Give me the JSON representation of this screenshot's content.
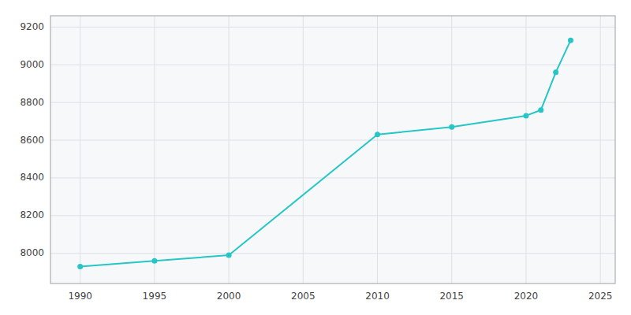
{
  "chart_data": {
    "type": "line",
    "x": [
      1990,
      1995,
      2000,
      2010,
      2015,
      2020,
      2021,
      2022,
      2023
    ],
    "values": [
      7930,
      7960,
      7990,
      8630,
      8670,
      8730,
      8760,
      8960,
      9130
    ],
    "color": "#26C6C6",
    "marker": "circle",
    "xlim": [
      1988,
      2026
    ],
    "ylim": [
      7840,
      9260
    ],
    "xticks": [
      1990,
      1995,
      2000,
      2005,
      2010,
      2015,
      2020,
      2025
    ],
    "yticks": [
      8000,
      8200,
      8400,
      8600,
      8800,
      9000,
      9200
    ],
    "grid": true
  }
}
